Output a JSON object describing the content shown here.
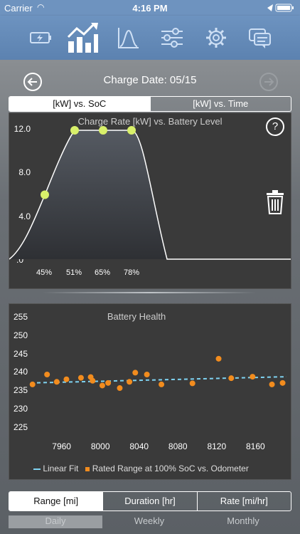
{
  "status": {
    "carrier": "Carrier",
    "time": "4:16 PM"
  },
  "nav": {
    "icons": [
      "battery-icon",
      "line-chart-icon",
      "bell-curve-icon",
      "sliders-icon",
      "gear-icon",
      "chat-icon"
    ],
    "active": 1
  },
  "header": {
    "title": "Charge Date: 05/15"
  },
  "top_tabs": {
    "tab1": "[kW] vs. SoC",
    "tab2": "[kW] vs. Time"
  },
  "chart_data": [
    {
      "type": "area",
      "title": "Charge Rate [kW] vs. Battery Level",
      "y_ticks": [
        "12.0",
        "8.0",
        "4.0",
        ".0"
      ],
      "x_labels": [
        "45%",
        "51%",
        "65%",
        "78%"
      ],
      "ylim": [
        0,
        12
      ],
      "markers": [
        {
          "x": "45%",
          "y": 6.0
        },
        {
          "x": "51%",
          "y": 12.0
        },
        {
          "x": "65%",
          "y": 12.0
        },
        {
          "x": "78%",
          "y": 12.0
        }
      ]
    },
    {
      "type": "scatter",
      "title": "Battery Health",
      "y_ticks": [
        "255",
        "250",
        "245",
        "240",
        "235",
        "230",
        "225"
      ],
      "x_ticks": [
        "7960",
        "8000",
        "8040",
        "8080",
        "8120",
        "8160"
      ],
      "ylim": [
        223,
        256
      ],
      "xlim": [
        7928,
        8192
      ],
      "series": [
        {
          "name": "Rated Range at 100% SoC vs. Odometer",
          "x": [
            7930,
            7945,
            7955,
            7965,
            7980,
            7990,
            7992,
            8002,
            8008,
            8020,
            8030,
            8036,
            8048,
            8063,
            8095,
            8122,
            8135,
            8157,
            8177,
            8188
          ],
          "y": [
            236.8,
            239.5,
            237.5,
            238.2,
            238.6,
            238.8,
            237.8,
            236.5,
            237.2,
            235.8,
            237.5,
            240.0,
            239.5,
            236.8,
            237.1,
            243.8,
            238.5,
            238.9,
            236.8,
            237.2
          ]
        },
        {
          "name": "Linear Fit",
          "x": [
            7928,
            8192
          ],
          "y": [
            237.2,
            238.9
          ]
        }
      ],
      "legend": [
        "Linear Fit",
        "Rated Range at 100% SoC vs. Odometer"
      ]
    }
  ],
  "bottom_tabs": {
    "tab1": "Range [mi]",
    "tab2": "Duration [hr]",
    "tab3": "Rate [mi/hr]"
  },
  "period_tabs": {
    "tab1": "Daily",
    "tab2": "Weekly",
    "tab3": "Monthly"
  }
}
